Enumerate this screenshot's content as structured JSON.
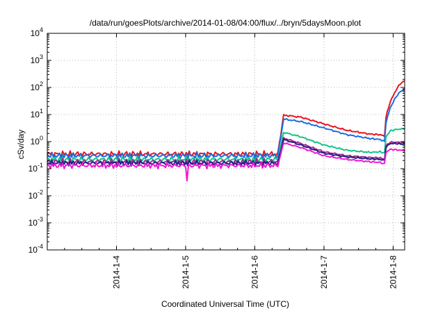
{
  "chart_data": {
    "type": "line",
    "title": "/data/run/goesPlots/archive/2014-01-08/04:00/flux/../bryn/5daysMoon.plot",
    "xlabel": "Coordinated Universal Time (UTC)",
    "ylabel": "cSv/day",
    "yscale": "log",
    "ylim": [
      0.0001,
      10000
    ],
    "y_ticks": [
      {
        "value": 0.0001,
        "base": "10",
        "exp": "-4"
      },
      {
        "value": 0.001,
        "base": "10",
        "exp": "-3"
      },
      {
        "value": 0.01,
        "base": "10",
        "exp": "-2"
      },
      {
        "value": 0.1,
        "base": "10",
        "exp": "-1"
      },
      {
        "value": 1,
        "base": "10",
        "exp": "0"
      },
      {
        "value": 10,
        "base": "10",
        "exp": "1"
      },
      {
        "value": 100,
        "base": "10",
        "exp": "2"
      },
      {
        "value": 1000,
        "base": "10",
        "exp": "3"
      },
      {
        "value": 10000,
        "base": "10",
        "exp": "4"
      }
    ],
    "xlim": [
      "2014-01-03T00:00",
      "2014-01-08T04:00"
    ],
    "x_ticks": [
      {
        "value": "2014-01-04T00:00",
        "label": "2014-1-4"
      },
      {
        "value": "2014-01-05T00:00",
        "label": "2014-1-5"
      },
      {
        "value": "2014-01-06T00:00",
        "label": "2014-1-6"
      },
      {
        "value": "2014-01-07T00:00",
        "label": "2014-1-7"
      },
      {
        "value": "2014-01-08T00:00",
        "label": "2014-1-8"
      }
    ],
    "grid": true,
    "legend": "none",
    "series": [
      {
        "color": "#e8141c",
        "points": [
          [
            "2014-01-03T00:00",
            0.35
          ],
          [
            "2014-01-06T08:00",
            0.35
          ],
          [
            "2014-01-06T10:00",
            9.5
          ],
          [
            "2014-01-06T16:00",
            8.0
          ],
          [
            "2014-01-07T00:00",
            4.5
          ],
          [
            "2014-01-07T08:00",
            2.6
          ],
          [
            "2014-01-07T16:00",
            1.9
          ],
          [
            "2014-01-07T19:30",
            1.8
          ],
          [
            "2014-01-07T21:00",
            1.6
          ],
          [
            "2014-01-07T21:30",
            8.0
          ],
          [
            "2014-01-07T23:00",
            30
          ],
          [
            "2014-01-08T01:00",
            80
          ],
          [
            "2014-01-08T02:30",
            140
          ],
          [
            "2014-01-08T04:00",
            175
          ]
        ]
      },
      {
        "color": "#1a6ee0",
        "points": [
          [
            "2014-01-03T00:00",
            0.3
          ],
          [
            "2014-01-06T08:00",
            0.3
          ],
          [
            "2014-01-06T10:00",
            6.8
          ],
          [
            "2014-01-06T16:00",
            5.5
          ],
          [
            "2014-01-07T00:00",
            3.2
          ],
          [
            "2014-01-07T08:00",
            1.8
          ],
          [
            "2014-01-07T16:00",
            1.3
          ],
          [
            "2014-01-07T19:30",
            1.2
          ],
          [
            "2014-01-07T21:00",
            1.0
          ],
          [
            "2014-01-07T21:30",
            5.0
          ],
          [
            "2014-01-07T23:00",
            18
          ],
          [
            "2014-01-08T01:00",
            45
          ],
          [
            "2014-01-08T02:30",
            70
          ],
          [
            "2014-01-08T04:00",
            88
          ]
        ]
      },
      {
        "color": "#11c48a",
        "points": [
          [
            "2014-01-03T00:00",
            0.22
          ],
          [
            "2014-01-06T08:00",
            0.22
          ],
          [
            "2014-01-06T10:00",
            2.2
          ],
          [
            "2014-01-06T16:00",
            1.5
          ],
          [
            "2014-01-07T00:00",
            0.75
          ],
          [
            "2014-01-07T08:00",
            0.48
          ],
          [
            "2014-01-07T16:00",
            0.4
          ],
          [
            "2014-01-07T19:30",
            0.42
          ],
          [
            "2014-01-07T21:00",
            0.38
          ],
          [
            "2014-01-07T21:30",
            1.5
          ],
          [
            "2014-01-07T23:00",
            2.5
          ],
          [
            "2014-01-08T01:00",
            2.8
          ],
          [
            "2014-01-08T02:30",
            2.9
          ],
          [
            "2014-01-08T04:00",
            3.0
          ]
        ]
      },
      {
        "color": "#a02a8a",
        "points": [
          [
            "2014-01-03T00:00",
            0.18
          ],
          [
            "2014-01-06T08:00",
            0.18
          ],
          [
            "2014-01-06T10:00",
            1.35
          ],
          [
            "2014-01-06T16:00",
            0.85
          ],
          [
            "2014-01-07T00:00",
            0.42
          ],
          [
            "2014-01-07T08:00",
            0.3
          ],
          [
            "2014-01-07T16:00",
            0.26
          ],
          [
            "2014-01-07T19:30",
            0.25
          ],
          [
            "2014-01-07T21:00",
            0.22
          ],
          [
            "2014-01-07T21:30",
            0.7
          ],
          [
            "2014-01-07T23:00",
            0.95
          ],
          [
            "2014-01-08T01:00",
            0.95
          ],
          [
            "2014-01-08T02:30",
            0.92
          ],
          [
            "2014-01-08T04:00",
            0.9
          ]
        ]
      },
      {
        "color": "#1f1f8c",
        "points": [
          [
            "2014-01-03T00:00",
            0.16
          ],
          [
            "2014-01-06T08:00",
            0.16
          ],
          [
            "2014-01-06T10:00",
            1.2
          ],
          [
            "2014-01-06T16:00",
            0.75
          ],
          [
            "2014-01-07T00:00",
            0.37
          ],
          [
            "2014-01-07T08:00",
            0.27
          ],
          [
            "2014-01-07T16:00",
            0.23
          ],
          [
            "2014-01-07T19:30",
            0.22
          ],
          [
            "2014-01-07T21:00",
            0.2
          ],
          [
            "2014-01-07T21:30",
            0.62
          ],
          [
            "2014-01-07T23:00",
            0.85
          ],
          [
            "2014-01-08T01:00",
            0.85
          ],
          [
            "2014-01-08T02:30",
            0.82
          ],
          [
            "2014-01-08T04:00",
            0.8
          ]
        ]
      },
      {
        "color": "#f018d0",
        "points": [
          [
            "2014-01-03T00:00",
            0.13
          ],
          [
            "2014-01-05T00:00",
            0.13
          ],
          [
            "2014-01-05T00:30",
            0.035
          ],
          [
            "2014-01-05T01:00",
            0.13
          ],
          [
            "2014-01-06T08:00",
            0.13
          ],
          [
            "2014-01-06T10:00",
            0.9
          ],
          [
            "2014-01-06T16:00",
            0.6
          ],
          [
            "2014-01-07T00:00",
            0.3
          ],
          [
            "2014-01-07T08:00",
            0.22
          ],
          [
            "2014-01-07T16:00",
            0.18
          ],
          [
            "2014-01-07T19:30",
            0.17
          ],
          [
            "2014-01-07T21:00",
            0.15
          ],
          [
            "2014-01-07T21:30",
            0.4
          ],
          [
            "2014-01-07T23:00",
            0.52
          ],
          [
            "2014-01-08T01:00",
            0.5
          ],
          [
            "2014-01-08T02:30",
            0.48
          ],
          [
            "2014-01-08T04:00",
            0.46
          ]
        ]
      }
    ]
  }
}
